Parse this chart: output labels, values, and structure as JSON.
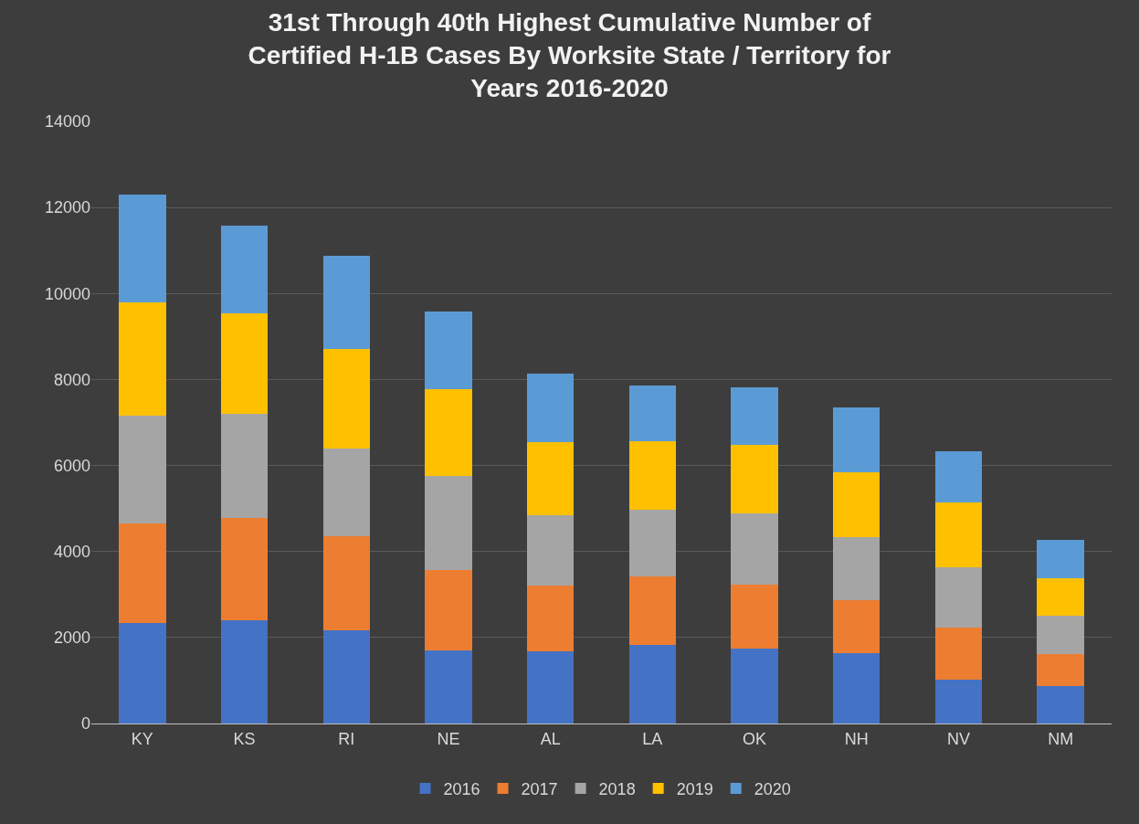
{
  "chart_data": {
    "type": "bar",
    "stacked": true,
    "title": "31st Through 40th Highest Cumulative Number of\nCertified H-1B Cases By Worksite State / Territory for\nYears 2016-2020",
    "categories": [
      "KY",
      "KS",
      "RI",
      "NE",
      "AL",
      "LA",
      "OK",
      "NH",
      "NV",
      "NM"
    ],
    "series": [
      {
        "name": "2016",
        "color": "#4472c4",
        "values": [
          2330,
          2400,
          2170,
          1710,
          1670,
          1830,
          1740,
          1640,
          1030,
          870
        ]
      },
      {
        "name": "2017",
        "color": "#ed7d31",
        "values": [
          2330,
          2370,
          2190,
          1850,
          1530,
          1600,
          1480,
          1230,
          1210,
          750
        ]
      },
      {
        "name": "2018",
        "color": "#a5a5a5",
        "values": [
          2490,
          2440,
          2030,
          2190,
          1640,
          1550,
          1670,
          1460,
          1390,
          890
        ]
      },
      {
        "name": "2019",
        "color": "#ffc000",
        "values": [
          2650,
          2330,
          2330,
          2030,
          1710,
          1580,
          1580,
          1510,
          1510,
          870
        ]
      },
      {
        "name": "2020",
        "color": "#5b9bd5",
        "values": [
          2510,
          2030,
          2150,
          1800,
          1580,
          1300,
          1350,
          1510,
          1190,
          890
        ]
      }
    ],
    "ylim": [
      0,
      14000
    ],
    "yticks": [
      0,
      2000,
      4000,
      6000,
      8000,
      10000,
      12000,
      14000
    ],
    "grid": "y",
    "legend": "bottom"
  }
}
